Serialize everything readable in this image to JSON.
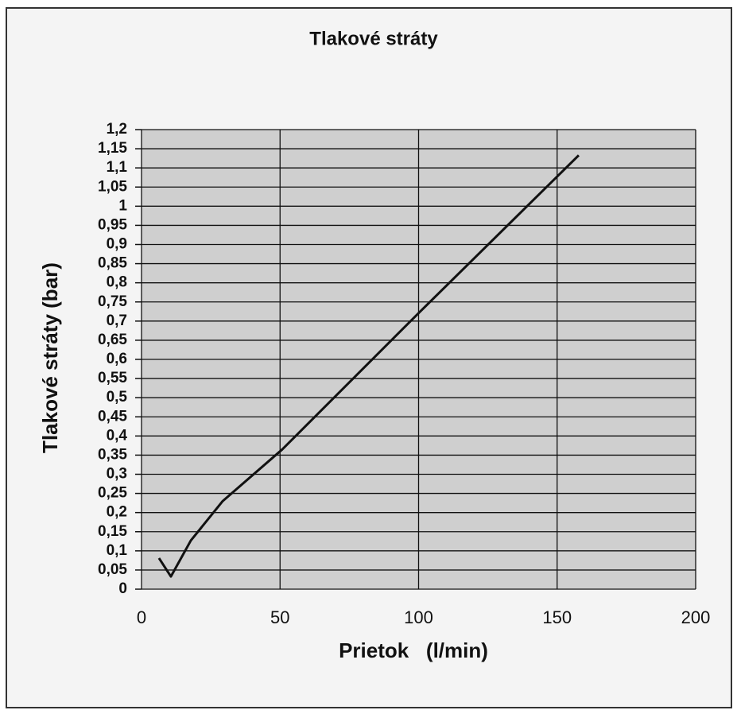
{
  "chart_data": {
    "type": "line",
    "title": "Tlakové stráty",
    "xlabel": "Prietok   (l/min)",
    "ylabel": "Tlakové stráty (bar)",
    "x": [
      6.3,
      10.6,
      17.8,
      29.3,
      50.8,
      99.6,
      157.8
    ],
    "values": [
      0.081,
      0.033,
      0.127,
      0.23,
      0.365,
      0.718,
      1.133
    ],
    "color": "#111111",
    "xlim": [
      0,
      200
    ],
    "xticks": [
      0,
      50,
      100,
      150,
      200
    ],
    "ylim": [
      0,
      1.2
    ],
    "yticks": [
      0,
      {
        "value": 0.05,
        "label": "0,05"
      },
      {
        "value": 0.1,
        "label": "0,1"
      },
      {
        "value": 0.15,
        "label": "0,15"
      },
      {
        "value": 0.2,
        "label": "0,2"
      },
      {
        "value": 0.25,
        "label": "0,25"
      },
      {
        "value": 0.3,
        "label": "0,3"
      },
      {
        "value": 0.35,
        "label": "0,35"
      },
      {
        "value": 0.4,
        "label": "0,4"
      },
      {
        "value": 0.45,
        "label": "0,45"
      },
      {
        "value": 0.5,
        "label": "0,5"
      },
      {
        "value": 0.55,
        "label": "0,55"
      },
      {
        "value": 0.6,
        "label": "0,6"
      },
      {
        "value": 0.65,
        "label": "0,65"
      },
      {
        "value": 0.7,
        "label": "0,7"
      },
      {
        "value": 0.75,
        "label": "0,75"
      },
      {
        "value": 0.8,
        "label": "0,8"
      },
      {
        "value": 0.85,
        "label": "0,85"
      },
      {
        "value": 0.9,
        "label": "0,9"
      },
      {
        "value": 0.95,
        "label": "0,95"
      },
      1,
      {
        "value": 1.05,
        "label": "1,05"
      },
      {
        "value": 1.1,
        "label": "1,1"
      },
      {
        "value": 1.15,
        "label": "1,15"
      },
      {
        "value": 1.2,
        "label": "1,2"
      }
    ],
    "grid": true
  }
}
